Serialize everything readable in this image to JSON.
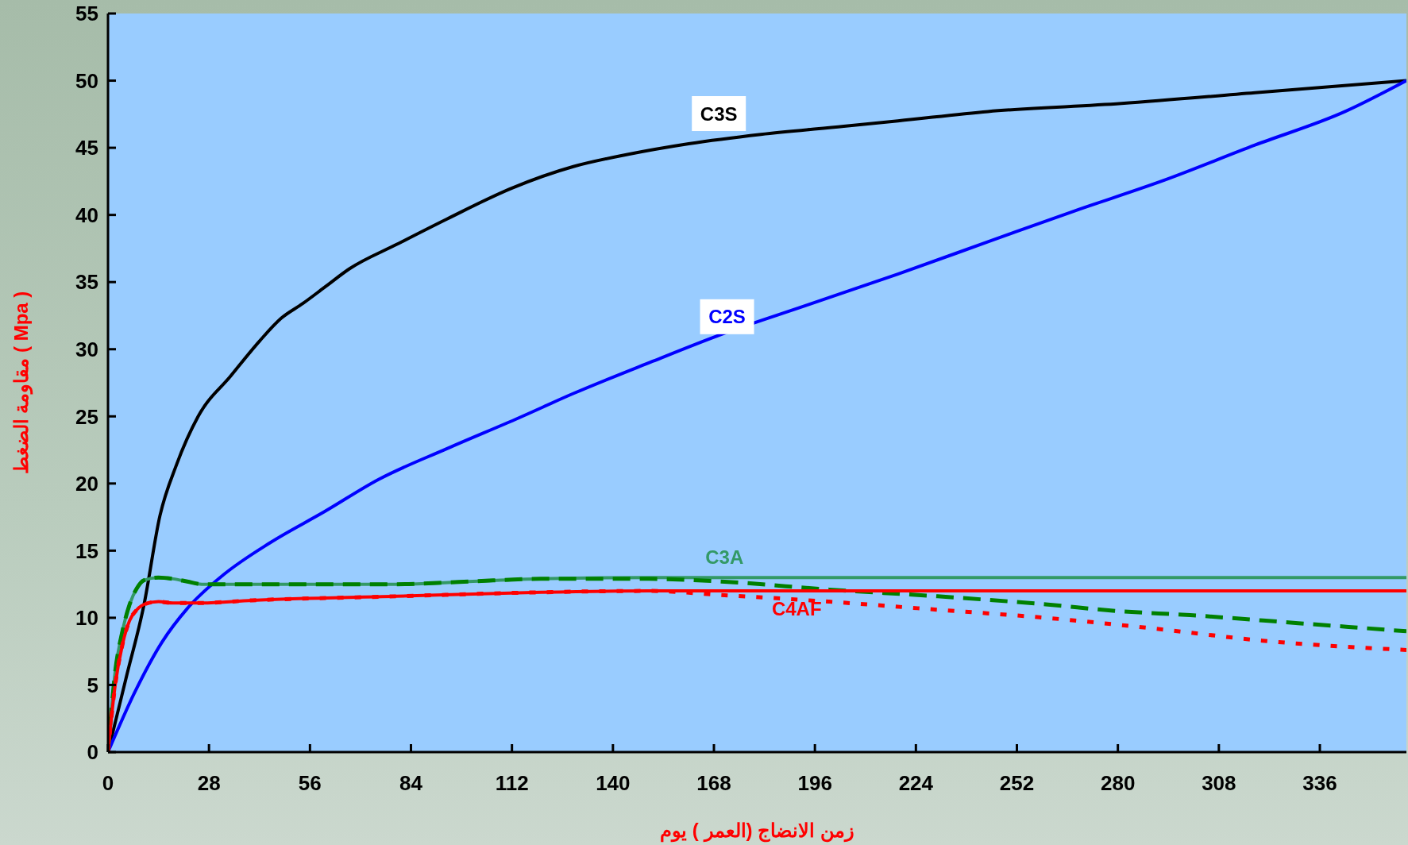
{
  "chart_data": {
    "type": "line",
    "xlabel": "زمن الانضاج (العمر ) يوم",
    "ylabel": "مقاومة الضغط ( Mpa )",
    "xlim": [
      0,
      360
    ],
    "xticks": [
      0,
      28,
      56,
      84,
      112,
      140,
      168,
      196,
      224,
      252,
      280,
      308,
      336
    ],
    "ylim": [
      0,
      55
    ],
    "yticks": [
      0,
      5,
      10,
      15,
      20,
      25,
      30,
      35,
      40,
      45,
      50,
      55
    ],
    "grid": false,
    "legend": false,
    "marker": "none",
    "series": [
      {
        "name": "C3S",
        "color": "#000000",
        "line_style": "solid",
        "x": [
          0,
          5,
          10,
          14.4,
          19,
          25,
          34,
          42,
          48,
          54,
          60,
          67,
          80,
          94,
          112,
          129,
          144,
          161,
          181,
          204,
          219,
          244,
          281,
          318,
          360
        ],
        "values": [
          0,
          5.5,
          11,
          17.6,
          21.4,
          25,
          28,
          30.6,
          32.3,
          33.4,
          34.6,
          36,
          37.8,
          39.7,
          42,
          43.6,
          44.5,
          45.3,
          46,
          46.6,
          47,
          47.7,
          48.3,
          49.1,
          50
        ]
      },
      {
        "name": "C2S",
        "color": "#0000ff",
        "line_style": "solid",
        "x": [
          0,
          7.5,
          15,
          22,
          32,
          45,
          60,
          75,
          94,
          114,
          129,
          151,
          169,
          194,
          219,
          244,
          268,
          293,
          318,
          343,
          360
        ],
        "values": [
          0,
          4.5,
          8.2,
          10.7,
          13.2,
          15.6,
          17.9,
          20.3,
          22.6,
          24.9,
          26.7,
          29.1,
          31,
          33.3,
          35.6,
          38,
          40.3,
          42.6,
          45.2,
          47.7,
          50
        ]
      },
      {
        "name": "C3A",
        "color": "#339966",
        "line_style": "solid",
        "x": [
          0,
          2,
          4,
          6,
          8,
          10,
          14,
          18,
          22,
          26,
          80,
          100,
          120,
          150,
          360
        ],
        "values": [
          0,
          6,
          9,
          11,
          12.2,
          12.8,
          13,
          12.9,
          12.7,
          12.5,
          12.5,
          12.7,
          12.9,
          13,
          13
        ]
      },
      {
        "color": "#008000",
        "line_style": "dashed",
        "x": [
          0,
          2,
          4,
          6,
          8,
          10,
          14,
          18,
          22,
          26,
          80,
          100,
          120,
          150,
          170,
          200,
          230,
          260,
          280,
          300,
          330,
          360
        ],
        "values": [
          0,
          6,
          9,
          11,
          12.2,
          12.8,
          13,
          12.9,
          12.7,
          12.5,
          12.5,
          12.7,
          12.9,
          12.9,
          12.7,
          12.1,
          11.6,
          11,
          10.5,
          10.2,
          9.6,
          9
        ]
      },
      {
        "name": "C4AF",
        "color": "#ff0000",
        "line_style": "solid",
        "x": [
          0,
          2,
          4,
          6,
          8,
          10,
          14,
          18,
          25,
          40,
          80,
          120,
          150,
          360
        ],
        "values": [
          0,
          5,
          8,
          9.8,
          10.6,
          11,
          11.2,
          11.1,
          11.1,
          11.3,
          11.6,
          11.9,
          12,
          12
        ]
      },
      {
        "color": "#ff0000",
        "line_style": "dotted",
        "x": [
          0,
          2,
          4,
          6,
          8,
          10,
          14,
          18,
          25,
          40,
          80,
          120,
          150,
          170,
          200,
          230,
          260,
          290,
          320,
          360
        ],
        "values": [
          0,
          5,
          8,
          9.8,
          10.6,
          11,
          11.2,
          11.1,
          11.1,
          11.3,
          11.6,
          11.9,
          12,
          11.7,
          11.2,
          10.6,
          10,
          9.2,
          8.3,
          7.6
        ]
      }
    ]
  }
}
